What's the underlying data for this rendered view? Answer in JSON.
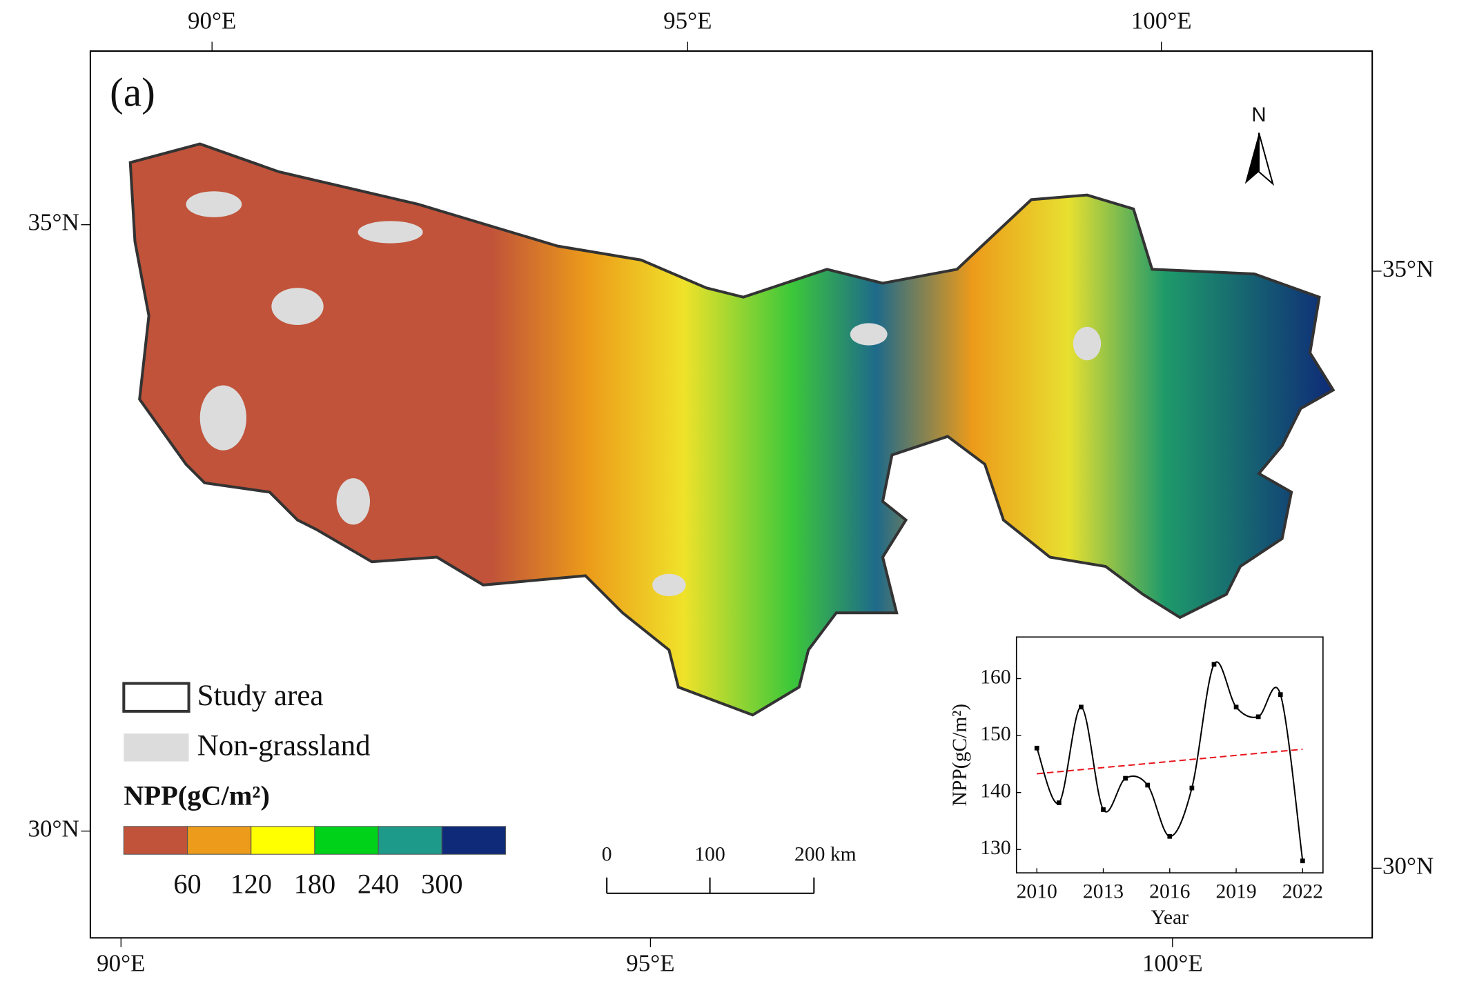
{
  "map": {
    "panel_label": "(a)",
    "top_ticks": [
      "90°E",
      "95°E",
      "100°E"
    ],
    "bottom_ticks": [
      "90°E",
      "95°E",
      "100°E"
    ],
    "left_ticks": [
      "35°N",
      "30°N"
    ],
    "right_ticks": [
      "35°N",
      "30°N"
    ],
    "north": "N",
    "legend": {
      "study_area": "Study area",
      "non_grassland": "Non-grassland",
      "title": "NPP(gC/m²)",
      "colors": [
        "#c0533a",
        "#ec9b1a",
        "#ffff00",
        "#00d21a",
        "#1e9a8a",
        "#0e2a78"
      ],
      "ticks": [
        60,
        120,
        180,
        240,
        300
      ]
    },
    "scale_bar": [
      "0",
      "100",
      "200 km"
    ]
  },
  "chart_data": {
    "type": "line",
    "x": [
      2010,
      2011,
      2012,
      2013,
      2014,
      2015,
      2016,
      2017,
      2018,
      2019,
      2020,
      2021,
      2022
    ],
    "values": [
      147.8,
      138.2,
      155,
      137,
      142.5,
      141.3,
      132.3,
      140.8,
      162.5,
      155,
      153.3,
      157.2,
      128
    ],
    "color": "#000000",
    "trend": {
      "x": [
        2010,
        2022
      ],
      "values": [
        143.3,
        147.6
      ],
      "color": "#e8141c"
    },
    "xlim": [
      2009.08,
      2022.92
    ],
    "xticks": [
      2010,
      2013,
      2016,
      2019,
      2022
    ],
    "ylim": [
      125.9,
      167.3
    ],
    "yticks": [
      130,
      140,
      150,
      160
    ],
    "x_label": "Year",
    "y_label": "NPP(gC/m²)"
  }
}
